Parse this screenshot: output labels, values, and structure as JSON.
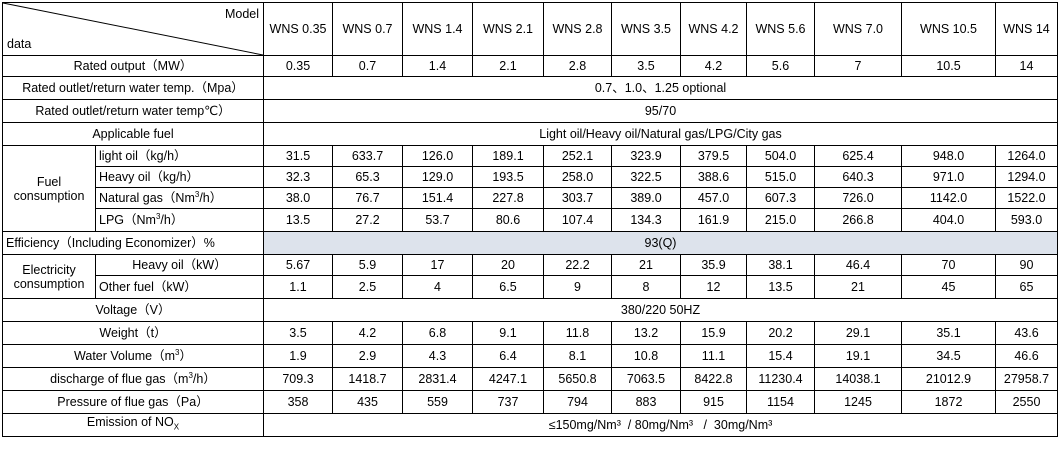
{
  "header": {
    "model_label": "Model",
    "data_label": "data",
    "models": [
      "WNS 0.35",
      "WNS 0.7",
      "WNS 1.4",
      "WNS 2.1",
      "WNS 2.8",
      "WNS 3.5",
      "WNS 4.2",
      "WNS 5.6",
      "WNS 7.0",
      "WNS 10.5",
      "WNS 14"
    ]
  },
  "rows": {
    "rated_output": {
      "label": "Rated output（MW）",
      "values": [
        "0.35",
        "0.7",
        "1.4",
        "2.1",
        "2.8",
        "3.5",
        "4.2",
        "5.6",
        "7",
        "10.5",
        "14"
      ]
    },
    "outlet_pressure": {
      "label": "Rated outlet/return water temp.（Mpa）",
      "value": "0.7、1.0、1.25 optional"
    },
    "outlet_temp": {
      "label": "Rated outlet/return water temp℃）",
      "value": "95/70"
    },
    "applicable_fuel": {
      "label": "Applicable fuel",
      "value": "Light oil/Heavy oil/Natural gas/LPG/City gas"
    },
    "fuel_consumption": {
      "group_label_1": "Fuel",
      "group_label_2": "consumption",
      "light_oil": {
        "label": "light oil（kg/h）",
        "values": [
          "31.5",
          "633.7",
          "126.0",
          "189.1",
          "252.1",
          "323.9",
          "379.5",
          "504.0",
          "625.4",
          "948.0",
          "1264.0"
        ]
      },
      "heavy_oil": {
        "label": "Heavy oil（kg/h）",
        "values": [
          "32.3",
          "65.3",
          "129.0",
          "193.5",
          "258.0",
          "322.5",
          "388.6",
          "515.0",
          "640.3",
          "971.0",
          "1294.0"
        ]
      },
      "natural_gas": {
        "label_a": "Natural gas（Nm",
        "label_sup": "3",
        "label_b": "/h）",
        "values": [
          "38.0",
          "76.7",
          "151.4",
          "227.8",
          "303.7",
          "389.0",
          "457.0",
          "607.3",
          "726.0",
          "1142.0",
          "1522.0"
        ]
      },
      "lpg": {
        "label_a": "LPG（Nm",
        "label_sup": "3",
        "label_b": "/h）",
        "values": [
          "13.5",
          "27.2",
          "53.7",
          "80.6",
          "107.4",
          "134.3",
          "161.9",
          "215.0",
          "266.8",
          "404.0",
          "593.0"
        ]
      }
    },
    "efficiency": {
      "label": "Efficiency（Including Economizer）%",
      "value": "93(Q)"
    },
    "electricity": {
      "group_label_1": "Electricity",
      "group_label_2": "consumption",
      "heavy_oil": {
        "label": "Heavy oil（kW）",
        "values": [
          "5.67",
          "5.9",
          "17",
          "20",
          "22.2",
          "21",
          "35.9",
          "38.1",
          "46.4",
          "70",
          "90"
        ]
      },
      "other_fuel": {
        "label": "Other fuel（kW）",
        "values": [
          "1.1",
          "2.5",
          "4",
          "6.5",
          "9",
          "8",
          "12",
          "13.5",
          "21",
          "45",
          "65"
        ]
      }
    },
    "voltage": {
      "label": "Voltage（V）",
      "value": "380/220 50HZ"
    },
    "weight": {
      "label": "Weight（t）",
      "values": [
        "3.5",
        "4.2",
        "6.8",
        "9.1",
        "11.8",
        "13.2",
        "15.9",
        "20.2",
        "29.1",
        "35.1",
        "43.6"
      ]
    },
    "water_volume": {
      "label_a": "Water Volume（m",
      "label_sup": "3",
      "label_b": "）",
      "values": [
        "1.9",
        "2.9",
        "4.3",
        "6.4",
        "8.1",
        "10.8",
        "11.1",
        "15.4",
        "19.1",
        "34.5",
        "46.6"
      ]
    },
    "flue_gas": {
      "label_a": "discharge of flue gas（m",
      "label_sup": "3",
      "label_b": "/h）",
      "values": [
        "709.3",
        "1418.7",
        "2831.4",
        "4247.1",
        "5650.8",
        "7063.5",
        "8422.8",
        "11230.4",
        "14038.1",
        "21012.9",
        "27958.7"
      ]
    },
    "flue_pressure": {
      "label": "Pressure of flue gas（Pa）",
      "values": [
        "358",
        "435",
        "559",
        "737",
        "794",
        "883",
        "915",
        "1154",
        "1245",
        "1872",
        "2550"
      ]
    },
    "nox": {
      "label_a": "Emission of NO",
      "label_sub": "X",
      "value": "≤150mg/Nm³  / 80mg/Nm³   /  30mg/Nm³"
    }
  }
}
